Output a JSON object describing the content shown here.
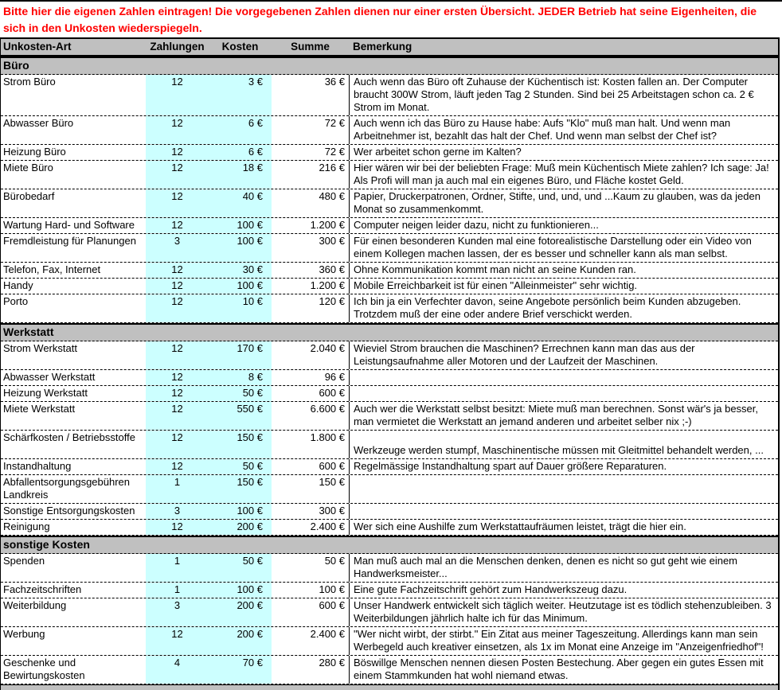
{
  "notice": {
    "text": "Bitte hier die eigenen Zahlen eintragen! Die vorgegebenen Zahlen dienen nur einer ersten Übersicht. JEDER Betrieb hat seine Eigenheiten, die sich in den Unkosten wiederspiegeln."
  },
  "columns": {
    "art": "Unkosten-Art",
    "zahlungen": "Zahlungen",
    "kosten": "Kosten",
    "summe": "Summe",
    "bemerkung": "Bemerkung"
  },
  "colors": {
    "notice_text": "#FF0000",
    "section_band": "#C0C0C0",
    "input_highlight": "#CCFFFF",
    "grid_lines": "#000000"
  },
  "sections": [
    {
      "title": "Büro",
      "rows": [
        {
          "art": "Strom Büro",
          "zahlungen": "12",
          "kosten": "3 €",
          "summe": "36 €",
          "bemerkung": "Auch wenn das Büro oft Zuhause der Küchentisch ist: Kosten fallen an. Der Computer braucht 300W Strom, läuft jeden Tag 2 Stunden. Sind bei 25 Arbeitstagen schon ca. 2 € Strom im Monat."
        },
        {
          "art": "Abwasser Büro",
          "zahlungen": "12",
          "kosten": "6 €",
          "summe": "72 €",
          "bemerkung": "Auch wenn ich das Büro zu Hause habe: Aufs \"Klo\" muß man halt. Und wenn man Arbeitnehmer ist, bezahlt das halt der Chef. Und wenn man selbst der Chef ist?"
        },
        {
          "art": "Heizung Büro",
          "zahlungen": "12",
          "kosten": "6 €",
          "summe": "72 €",
          "bemerkung": "Wer arbeitet schon gerne im Kalten?"
        },
        {
          "art": "Miete Büro",
          "zahlungen": "12",
          "kosten": "18 €",
          "summe": "216 €",
          "bemerkung": "Hier wären wir bei der beliebten Frage: Muß mein Küchentisch Miete zahlen? Ich sage: Ja! Als Profi will man ja auch mal ein eigenes Büro, und Fläche kostet Geld."
        },
        {
          "art": "Bürobedarf",
          "zahlungen": "12",
          "kosten": "40 €",
          "summe": "480 €",
          "bemerkung": "Papier, Druckerpatronen, Ordner, Stifte, und, und, und ...Kaum zu glauben, was da jeden Monat so zusammenkommt."
        },
        {
          "art": "Wartung Hard- und Software",
          "zahlungen": "12",
          "kosten": "100 €",
          "summe": "1.200 €",
          "bemerkung": "Computer neigen leider dazu, nicht zu funktionieren..."
        },
        {
          "art": "Fremdleistung für Planungen",
          "zahlungen": "3",
          "kosten": "100 €",
          "summe": "300 €",
          "bemerkung": "Für einen besonderen Kunden mal eine fotorealistische Darstellung oder ein Video von einem Kollegen machen lassen, der es besser und schneller kann als man selbst."
        },
        {
          "art": "Telefon, Fax, Internet",
          "zahlungen": "12",
          "kosten": "30 €",
          "summe": "360 €",
          "bemerkung": "Ohne Kommunikation kommt man nicht an seine Kunden ran."
        },
        {
          "art": "Handy",
          "zahlungen": "12",
          "kosten": "100 €",
          "summe": "1.200 €",
          "bemerkung": "Mobile Erreichbarkeit ist für einen \"Alleinmeister\" sehr wichtig."
        },
        {
          "art": "Porto",
          "zahlungen": "12",
          "kosten": "10 €",
          "summe": "120 €",
          "bemerkung": "Ich bin ja ein Verfechter davon, seine Angebote persönlich beim Kunden abzugeben. Trotzdem muß der eine oder andere Brief verschickt werden."
        }
      ]
    },
    {
      "title": "Werkstatt",
      "rows": [
        {
          "art": "Strom Werkstatt",
          "zahlungen": "12",
          "kosten": "170 €",
          "summe": "2.040 €",
          "bemerkung": "Wieviel Strom brauchen die Maschinen? Errechnen kann man das aus der Leistungsaufnahme aller Motoren und der Laufzeit der Maschinen."
        },
        {
          "art": "Abwasser Werkstatt",
          "zahlungen": "12",
          "kosten": "8 €",
          "summe": "96 €",
          "bemerkung": ""
        },
        {
          "art": "Heizung Werkstatt",
          "zahlungen": "12",
          "kosten": "50 €",
          "summe": "600 €",
          "bemerkung": ""
        },
        {
          "art": "Miete Werkstatt",
          "zahlungen": "12",
          "kosten": "550 €",
          "summe": "6.600 €",
          "bemerkung": "Auch wer die Werkstatt selbst besitzt: Miete muß man berechnen. Sonst wär's ja besser, man vermietet die Werkstatt an jemand anderen und arbeitet selber nix ;-)"
        },
        {
          "art": "Schärfkosten / Betriebsstoffe",
          "zahlungen": "12",
          "kosten": "150 €",
          "summe": "1.800 €",
          "bemerkung": "\nWerkzeuge werden stumpf, Maschinentische müssen mit Gleitmittel behandelt werden, ..."
        },
        {
          "art": "Instandhaltung",
          "zahlungen": "12",
          "kosten": "50 €",
          "summe": "600 €",
          "bemerkung": "Regelmässige Instandhaltung spart auf Dauer größere Reparaturen."
        },
        {
          "art": "Abfallentsorgungsgebühren Landkreis",
          "zahlungen": "1",
          "kosten": "150 €",
          "summe": "150 €",
          "bemerkung": ""
        },
        {
          "art": "Sonstige Entsorgungskosten",
          "zahlungen": "3",
          "kosten": "100 €",
          "summe": "300 €",
          "bemerkung": ""
        },
        {
          "art": "Reinigung",
          "zahlungen": "12",
          "kosten": "200 €",
          "summe": "2.400 €",
          "bemerkung": "Wer sich eine Aushilfe zum Werkstattaufräumen leistet, trägt die hier ein."
        }
      ]
    },
    {
      "title": "sonstige Kosten",
      "rows": [
        {
          "art": "Spenden",
          "zahlungen": "1",
          "kosten": "50 €",
          "summe": "50 €",
          "bemerkung": "Man muß auch mal an die Menschen denken, denen es nicht so gut geht wie einem Handwerksmeister..."
        },
        {
          "art": "Fachzeitschriften",
          "zahlungen": "1",
          "kosten": "100 €",
          "summe": "100 €",
          "bemerkung": "Eine gute Fachzeitschrift gehört zum Handwerkszeug dazu."
        },
        {
          "art": "Weiterbildung",
          "zahlungen": "3",
          "kosten": "200 €",
          "summe": "600 €",
          "bemerkung": "Unser Handwerk entwickelt sich täglich weiter. Heutzutage ist es tödlich stehenzubleiben. 3 Weiterbildungen jährlich halte ich für das Minimum."
        },
        {
          "art": "Werbung",
          "zahlungen": "12",
          "kosten": "200 €",
          "summe": "2.400 €",
          "bemerkung": "\"Wer nicht wirbt, der stirbt.\" Ein Zitat aus meiner Tageszeitung. Allerdings kann man sein Werbegeld auch kreativer einsetzen, als 1x im Monat eine Anzeige im \"Anzeigenfriedhof\"!"
        },
        {
          "art": "Geschenke und Bewirtungskosten",
          "zahlungen": "4",
          "kosten": "70 €",
          "summe": "280 €",
          "bemerkung": "Böswillge Menschen nennen diesen Posten Bestechung. Aber gegen ein gutes Essen mit einem Stammkunden hat wohl niemand etwas."
        }
      ]
    }
  ]
}
